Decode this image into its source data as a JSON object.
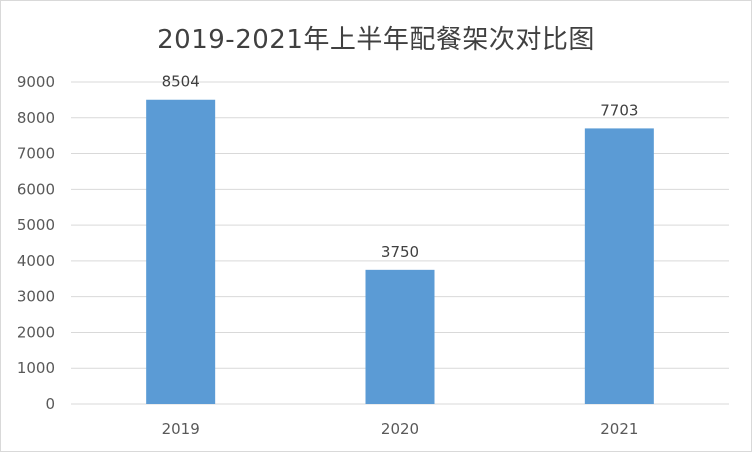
{
  "chart_data": {
    "type": "bar",
    "title": "2019-2021年上半年配餐架次对比图",
    "categories": [
      "2019",
      "2020",
      "2021"
    ],
    "values": [
      8504,
      3750,
      7703
    ],
    "data_labels": [
      "8504",
      "3750",
      "7703"
    ],
    "ylim": [
      0,
      9000
    ],
    "yticks": [
      0,
      1000,
      2000,
      3000,
      4000,
      5000,
      6000,
      7000,
      8000,
      9000
    ],
    "xlabel": "",
    "ylabel": "",
    "grid": true,
    "legend": "none",
    "bar_color": "#5b9bd5",
    "grid_color": "#d9d9d9",
    "text_color": "#595959"
  }
}
